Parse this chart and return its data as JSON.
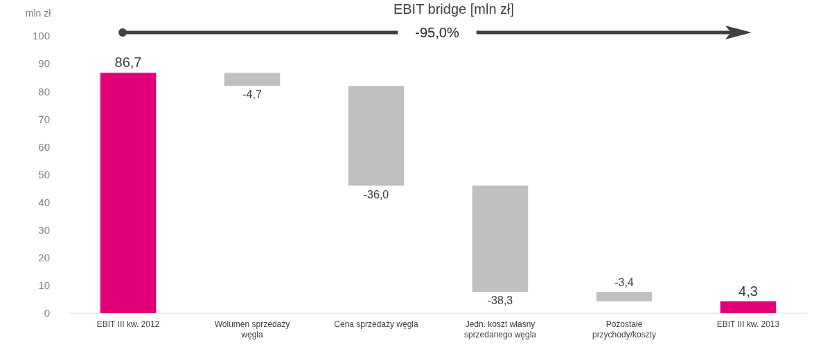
{
  "chart_data": {
    "type": "bar",
    "title": "EBIT bridge [mln zł]",
    "ylabel": "mln zł",
    "categories": [
      "EBIT III kw. 2012",
      "Wolumen sprzedaży węgla",
      "Cena sprzedaży węgla",
      "Jedn. koszt własny sprzedanego węgla",
      "Pozostałe przychody/koszty",
      "EBIT III kw. 2013"
    ],
    "values": [
      86.7,
      -4.7,
      -36.0,
      -38.3,
      -3.4,
      4.3
    ],
    "base": [
      0,
      86.7,
      82.0,
      46.0,
      7.7,
      0
    ],
    "colors": [
      "#e2007a",
      "#c0c0c0",
      "#c0c0c0",
      "#c0c0c0",
      "#c0c0c0",
      "#e2007a"
    ],
    "value_labels": [
      "86,7",
      "-4,7",
      "-36,0",
      "-38,3",
      "-3,4",
      "4,3"
    ],
    "ylim": [
      0,
      100
    ],
    "yticks": [
      0,
      10,
      20,
      30,
      40,
      50,
      60,
      70,
      80,
      90,
      100
    ],
    "annotations": [
      "-95,0%"
    ]
  }
}
